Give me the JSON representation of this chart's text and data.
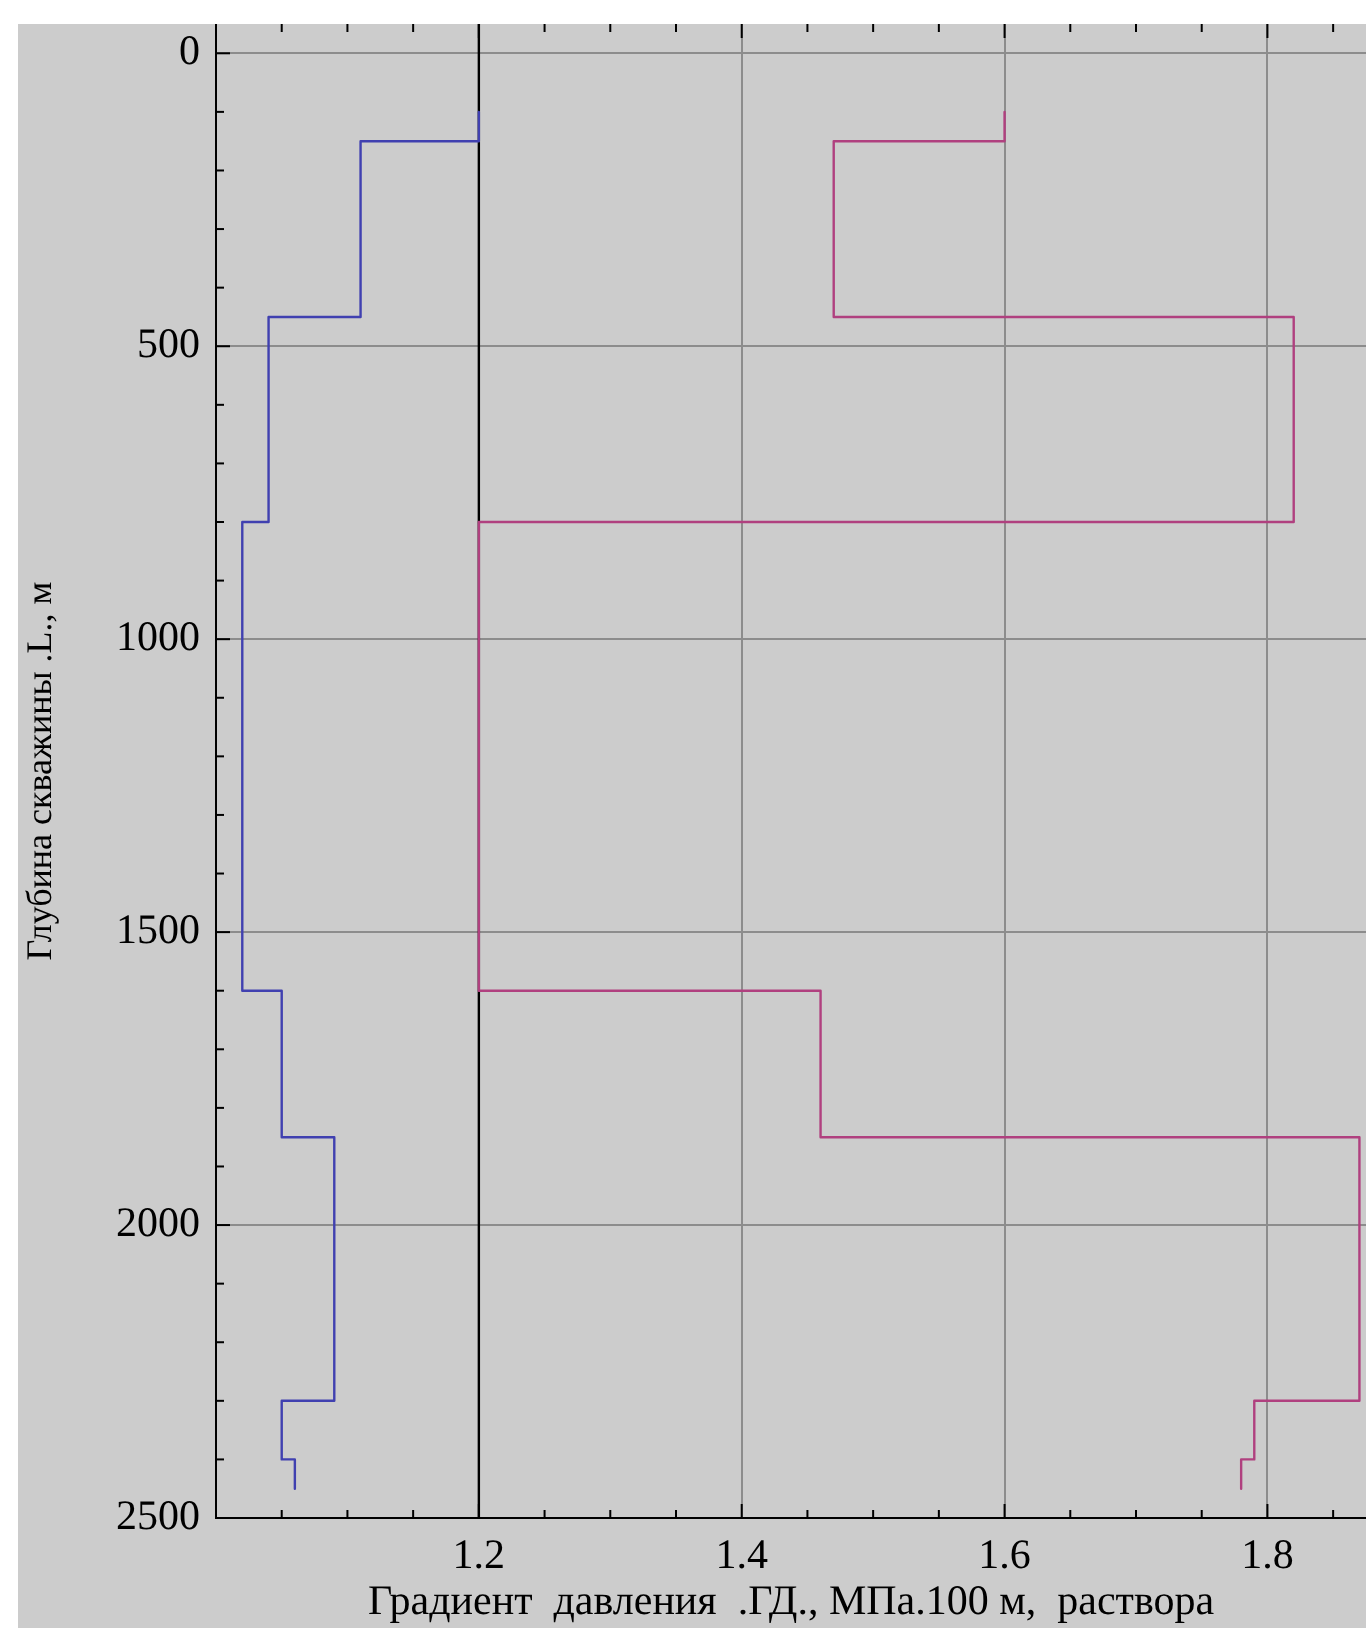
{
  "chart_data": {
    "type": "line",
    "xlabel": "Градиент  давления  .ГД., МПа.100 м,  раствора",
    "ylabel": "Глубина скважины .L., м",
    "xlim": [
      1.0,
      1.875
    ],
    "xticks": [
      {
        "value": 1.05,
        "label": null
      },
      {
        "value": 1.1,
        "label": null
      },
      {
        "value": 1.15,
        "label": null
      },
      1.2,
      {
        "value": 1.25,
        "label": null
      },
      {
        "value": 1.3,
        "label": null
      },
      {
        "value": 1.35,
        "label": null
      },
      1.4,
      {
        "value": 1.45,
        "label": null
      },
      {
        "value": 1.5,
        "label": null
      },
      {
        "value": 1.55,
        "label": null
      },
      1.6,
      {
        "value": 1.65,
        "label": null
      },
      {
        "value": 1.7,
        "label": null
      },
      {
        "value": 1.75,
        "label": null
      },
      1.8,
      {
        "value": 1.85,
        "label": null
      }
    ],
    "ylim": [
      2500,
      -50
    ],
    "yticks": [
      0,
      {
        "value": 100,
        "label": null
      },
      {
        "value": 200,
        "label": null
      },
      {
        "value": 300,
        "label": null
      },
      {
        "value": 400,
        "label": null
      },
      500,
      {
        "value": 600,
        "label": null
      },
      {
        "value": 700,
        "label": null
      },
      {
        "value": 800,
        "label": null
      },
      {
        "value": 900,
        "label": null
      },
      1000,
      {
        "value": 1100,
        "label": null
      },
      {
        "value": 1200,
        "label": null
      },
      {
        "value": 1300,
        "label": null
      },
      {
        "value": 1400,
        "label": null
      },
      1500,
      {
        "value": 1600,
        "label": null
      },
      {
        "value": 1700,
        "label": null
      },
      {
        "value": 1800,
        "label": null
      },
      {
        "value": 1900,
        "label": null
      },
      2000,
      {
        "value": 2100,
        "label": null
      },
      {
        "value": 2200,
        "label": null
      },
      {
        "value": 2300,
        "label": null
      },
      {
        "value": 2400,
        "label": null
      },
      2500
    ],
    "grid": true,
    "ref_lines": [
      {
        "axis": "x",
        "value": 1.2,
        "color": "#000000"
      }
    ],
    "series": [
      {
        "color": "#4040b0",
        "x": [
          1.2,
          1.2,
          1.11,
          1.11,
          1.04,
          1.04,
          1.02,
          1.02,
          1.05,
          1.05,
          1.09,
          1.09,
          1.05,
          1.05,
          1.06,
          1.06
        ],
        "values": [
          100,
          150,
          150,
          450,
          450,
          800,
          800,
          1600,
          1600,
          1850,
          1850,
          2300,
          2300,
          2400,
          2400,
          2450
        ]
      },
      {
        "color": "#b0407f",
        "x": [
          1.6,
          1.6,
          1.47,
          1.47,
          1.82,
          1.82,
          1.2,
          1.2,
          1.46,
          1.46,
          1.87,
          1.87,
          1.79,
          1.79,
          1.78,
          1.78
        ],
        "values": [
          100,
          150,
          150,
          450,
          450,
          800,
          800,
          1600,
          1600,
          1850,
          1850,
          2300,
          2300,
          2400,
          2400,
          2450
        ]
      }
    ]
  }
}
